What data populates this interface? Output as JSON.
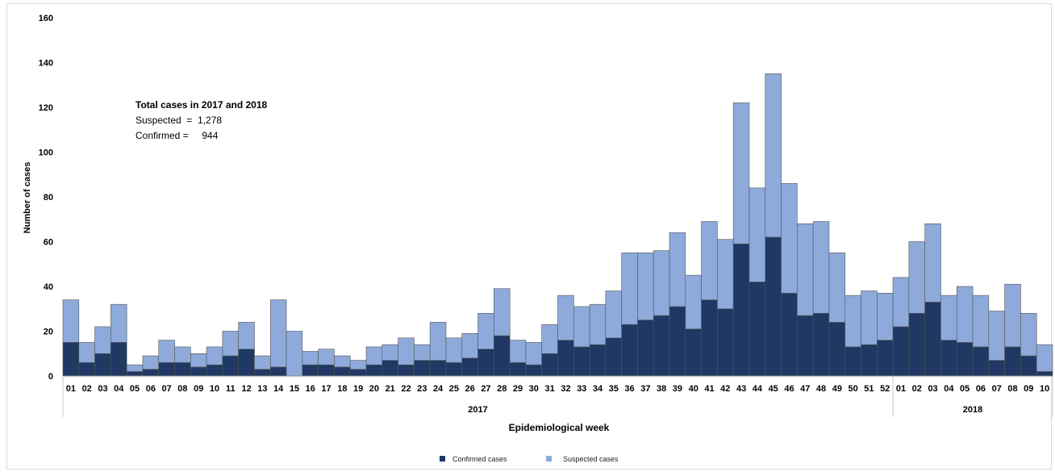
{
  "chart_data": {
    "type": "bar",
    "stacked": true,
    "xlabel": "Epidemiological week",
    "ylabel": "Number of cases",
    "ylim": [
      0,
      160
    ],
    "yticks": [
      0,
      20,
      40,
      60,
      80,
      100,
      120,
      140,
      160
    ],
    "grid": false,
    "legend_position": "bottom-center",
    "categories": [
      "01",
      "02",
      "03",
      "04",
      "05",
      "06",
      "07",
      "08",
      "09",
      "10",
      "11",
      "12",
      "13",
      "14",
      "15",
      "16",
      "17",
      "18",
      "19",
      "20",
      "21",
      "22",
      "23",
      "24",
      "25",
      "26",
      "27",
      "28",
      "29",
      "30",
      "31",
      "32",
      "33",
      "34",
      "35",
      "36",
      "37",
      "38",
      "39",
      "40",
      "41",
      "42",
      "43",
      "44",
      "45",
      "46",
      "47",
      "48",
      "49",
      "50",
      "51",
      "52",
      "01",
      "02",
      "03",
      "04",
      "05",
      "06",
      "07",
      "08",
      "09",
      "10"
    ],
    "year_groups": [
      {
        "label": "2017",
        "count": 52
      },
      {
        "label": "2018",
        "count": 10
      }
    ],
    "series": [
      {
        "name": "Confirmed cases",
        "color": "#1f3864",
        "values": [
          15,
          6,
          10,
          15,
          2,
          3,
          6,
          6,
          4,
          5,
          9,
          12,
          3,
          4,
          0,
          5,
          5,
          4,
          3,
          5,
          7,
          5,
          7,
          7,
          6,
          8,
          12,
          18,
          6,
          5,
          10,
          16,
          13,
          14,
          17,
          23,
          25,
          27,
          31,
          21,
          34,
          30,
          59,
          42,
          62,
          37,
          27,
          28,
          24,
          13,
          14,
          16,
          22,
          28,
          33,
          16,
          15,
          13,
          7,
          13,
          9,
          2
        ]
      },
      {
        "name": "Suspected cases",
        "color": "#8eaadb",
        "values": [
          19,
          9,
          12,
          17,
          3,
          6,
          10,
          7,
          6,
          8,
          11,
          12,
          6,
          30,
          20,
          6,
          7,
          5,
          4,
          8,
          7,
          12,
          7,
          17,
          11,
          11,
          16,
          21,
          10,
          10,
          13,
          20,
          18,
          18,
          21,
          32,
          30,
          29,
          33,
          24,
          35,
          31,
          63,
          42,
          73,
          49,
          41,
          41,
          31,
          23,
          24,
          21,
          22,
          32,
          35,
          20,
          25,
          23,
          22,
          28,
          19,
          12
        ]
      }
    ],
    "annotation": {
      "title": "Total cases in 2017 and 2018",
      "lines": [
        "Suspected  =  1,278",
        "Confirmed =     944"
      ]
    }
  }
}
